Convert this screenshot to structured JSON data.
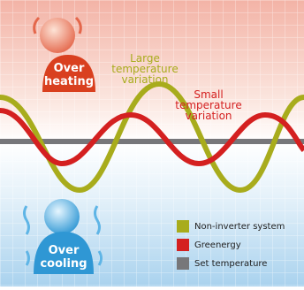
{
  "overheating_label": [
    "Over",
    "heating"
  ],
  "large_variation_label": [
    "Large",
    "temperature",
    "variation"
  ],
  "small_variation_label": [
    "Small",
    "temperature",
    "variation"
  ],
  "overcooling_label": [
    "Over",
    "cooling"
  ],
  "legend": [
    {
      "name": "Non-inverter system",
      "color": "#a8ac1c"
    },
    {
      "name": "Greenergy",
      "color": "#d42020"
    },
    {
      "name": "Set temperature",
      "color": "#77777a"
    }
  ]
}
